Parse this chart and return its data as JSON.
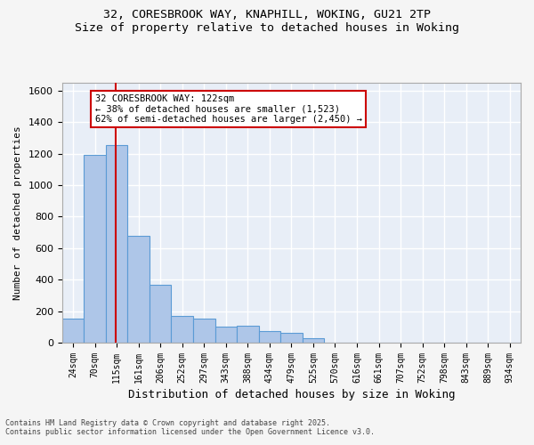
{
  "title_line1": "32, CORESBROOK WAY, KNAPHILL, WOKING, GU21 2TP",
  "title_line2": "Size of property relative to detached houses in Woking",
  "xlabel": "Distribution of detached houses by size in Woking",
  "ylabel": "Number of detached properties",
  "bar_color": "#aec6e8",
  "bar_edge_color": "#5b9bd5",
  "bg_color": "#e8eef7",
  "grid_color": "#ffffff",
  "bins": [
    "24sqm",
    "70sqm",
    "115sqm",
    "161sqm",
    "206sqm",
    "252sqm",
    "297sqm",
    "343sqm",
    "388sqm",
    "434sqm",
    "479sqm",
    "525sqm",
    "570sqm",
    "616sqm",
    "661sqm",
    "707sqm",
    "752sqm",
    "798sqm",
    "843sqm",
    "889sqm",
    "934sqm"
  ],
  "values": [
    155,
    1195,
    1255,
    680,
    370,
    170,
    155,
    100,
    105,
    75,
    65,
    30,
    0,
    0,
    0,
    0,
    0,
    0,
    0,
    0,
    0
  ],
  "property_line_x": 1.95,
  "property_size": "122sqm",
  "annotation_text": "32 CORESBROOK WAY: 122sqm\n← 38% of detached houses are smaller (1,523)\n62% of semi-detached houses are larger (2,450) →",
  "annotation_box_color": "#ffffff",
  "annotation_border_color": "#cc0000",
  "vline_color": "#cc0000",
  "ylim": [
    0,
    1650
  ],
  "yticks": [
    0,
    200,
    400,
    600,
    800,
    1000,
    1200,
    1400,
    1600
  ],
  "footer_line1": "Contains HM Land Registry data © Crown copyright and database right 2025.",
  "footer_line2": "Contains public sector information licensed under the Open Government Licence v3.0."
}
